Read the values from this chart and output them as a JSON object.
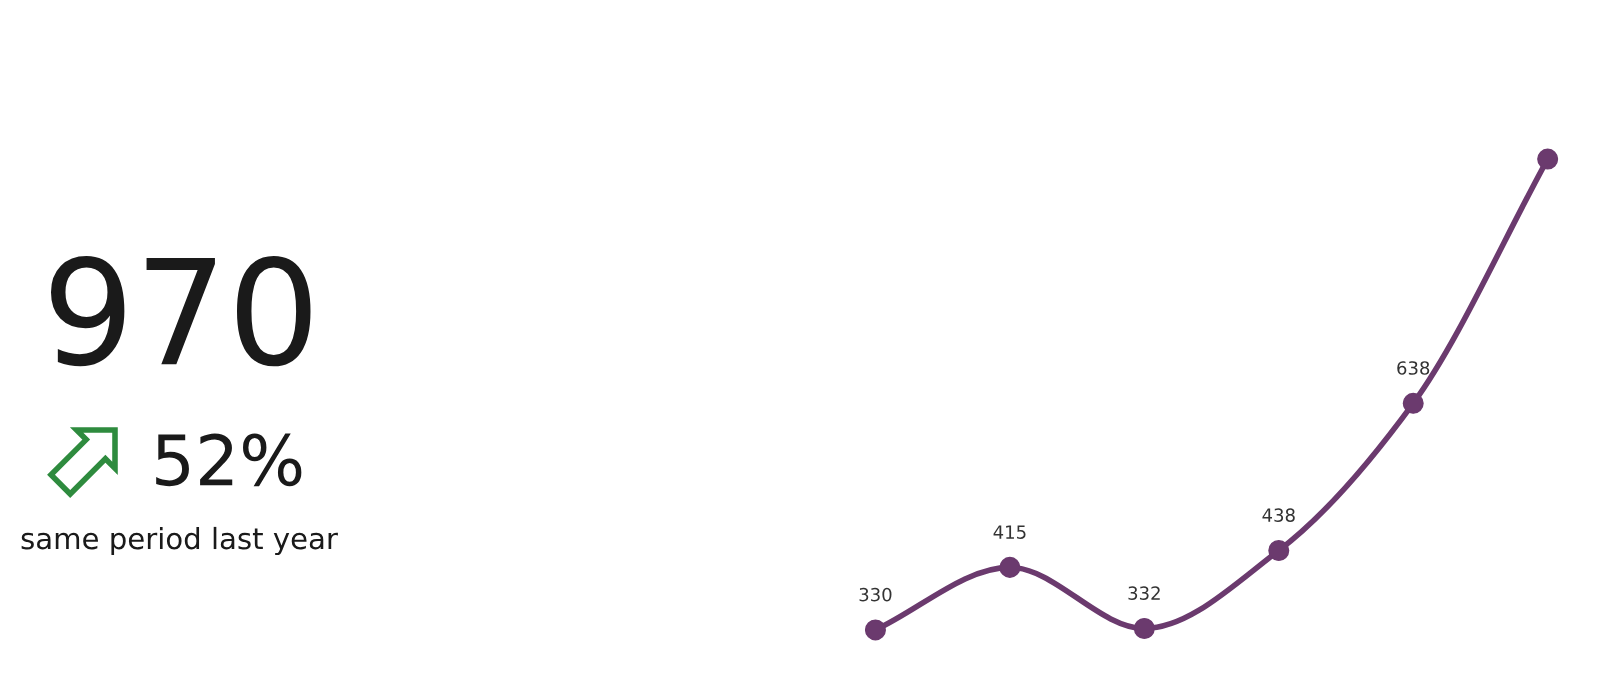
{
  "chart_data": [
    {
      "type": "other",
      "annotations": [
        "970",
        "52%",
        "same period last year"
      ]
    },
    {
      "type": "line",
      "categories": [
        null,
        null,
        null,
        null,
        null,
        null
      ],
      "series": [
        {
          "color": "#6b3a6e",
          "values": [
            330,
            415,
            332,
            438,
            638,
            970
          ],
          "value_labels": [
            "330",
            "415",
            "332",
            "438",
            "638",
            null
          ]
        }
      ],
      "marker": "circle",
      "line_style": "solid",
      "grid": false,
      "tick_labels": false
    }
  ]
}
